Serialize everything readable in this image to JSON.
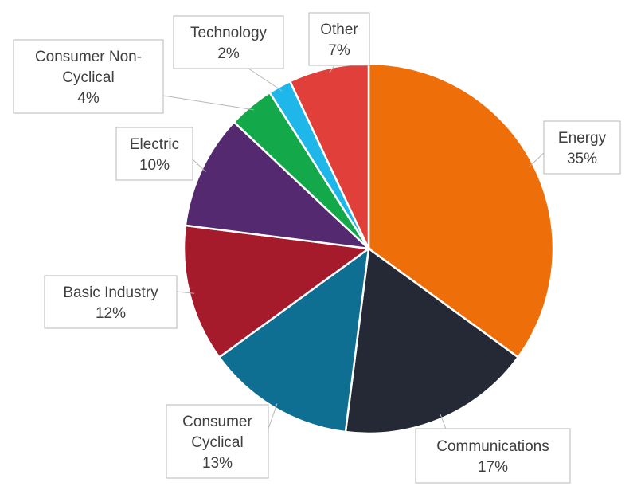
{
  "chart_data": {
    "type": "pie",
    "title": "",
    "start_angle_deg": 0,
    "direction": "clockwise",
    "slices": [
      {
        "label": "Energy",
        "value": 35,
        "value_label": "35%",
        "color": "#ee6f0a"
      },
      {
        "label": "Communications",
        "value": 17,
        "value_label": "17%",
        "color": "#252936"
      },
      {
        "label": "Consumer Cyclical",
        "value": 13,
        "value_label": "13%",
        "color": "#0f6f92"
      },
      {
        "label": "Basic Industry",
        "value": 12,
        "value_label": "12%",
        "color": "#a51b2b"
      },
      {
        "label": "Electric",
        "value": 10,
        "value_label": "10%",
        "color": "#55296f"
      },
      {
        "label": "Consumer Non-Cyclical",
        "value": 4,
        "value_label": "4%",
        "color": "#13a84a"
      },
      {
        "label": "Technology",
        "value": 2,
        "value_label": "2%",
        "color": "#1fb6ea"
      },
      {
        "label": "Other",
        "value": 7,
        "value_label": "7%",
        "color": "#e03f3a"
      }
    ]
  }
}
